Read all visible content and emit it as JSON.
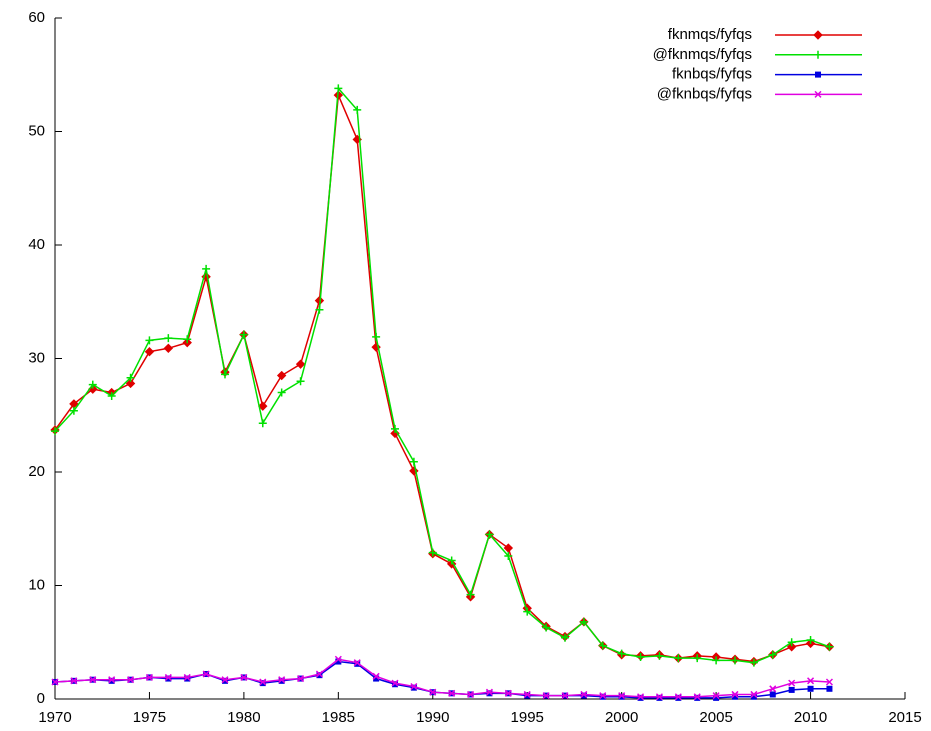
{
  "chart_data": {
    "type": "line",
    "x": [
      1970,
      1971,
      1972,
      1973,
      1974,
      1975,
      1976,
      1977,
      1978,
      1979,
      1980,
      1981,
      1982,
      1983,
      1984,
      1985,
      1986,
      1987,
      1988,
      1989,
      1990,
      1991,
      1992,
      1993,
      1994,
      1995,
      1996,
      1997,
      1998,
      1999,
      2000,
      2001,
      2002,
      2003,
      2004,
      2005,
      2006,
      2007,
      2008,
      2009,
      2010,
      2011
    ],
    "series": [
      {
        "name": "fknmqs/fyfqs",
        "color": "#e00000",
        "marker": "diamond",
        "values": [
          23.7,
          26.0,
          27.3,
          27.0,
          27.8,
          30.6,
          30.9,
          31.4,
          37.2,
          28.8,
          32.1,
          25.8,
          28.5,
          29.5,
          35.1,
          53.2,
          49.3,
          31.0,
          23.4,
          20.1,
          12.8,
          11.9,
          9.0,
          14.5,
          13.3,
          8.0,
          6.4,
          5.5,
          6.8,
          4.7,
          3.9,
          3.8,
          3.9,
          3.6,
          3.8,
          3.7,
          3.5,
          3.3,
          3.9,
          4.6,
          4.9,
          4.6
        ]
      },
      {
        "name": "@fknmqs/fyfqs",
        "color": "#00e000",
        "marker": "plus",
        "values": [
          23.6,
          25.4,
          27.7,
          26.7,
          28.3,
          31.6,
          31.8,
          31.7,
          37.9,
          28.6,
          32.1,
          24.3,
          27.0,
          28.0,
          34.3,
          53.8,
          51.9,
          31.9,
          23.8,
          20.9,
          12.9,
          12.2,
          9.2,
          14.5,
          12.6,
          7.7,
          6.3,
          5.4,
          6.8,
          4.7,
          4.0,
          3.7,
          3.8,
          3.6,
          3.6,
          3.4,
          3.4,
          3.2,
          3.9,
          5.0,
          5.2,
          4.6
        ]
      },
      {
        "name": "fknbqs/fyfqs",
        "color": "#0000e0",
        "marker": "square",
        "values": [
          1.5,
          1.6,
          1.7,
          1.6,
          1.7,
          1.9,
          1.8,
          1.8,
          2.2,
          1.6,
          1.9,
          1.4,
          1.6,
          1.8,
          2.1,
          3.3,
          3.1,
          1.8,
          1.3,
          1.0,
          0.6,
          0.5,
          0.4,
          0.5,
          0.5,
          0.3,
          0.3,
          0.3,
          0.3,
          0.2,
          0.2,
          0.1,
          0.1,
          0.1,
          0.1,
          0.1,
          0.2,
          0.2,
          0.4,
          0.8,
          0.9,
          0.9
        ]
      },
      {
        "name": "@fknbqs/fyfqs",
        "color": "#e000e0",
        "marker": "cross",
        "values": [
          1.5,
          1.6,
          1.7,
          1.7,
          1.7,
          1.9,
          1.9,
          1.9,
          2.2,
          1.7,
          1.9,
          1.5,
          1.7,
          1.8,
          2.2,
          3.5,
          3.2,
          2.0,
          1.4,
          1.1,
          0.6,
          0.5,
          0.4,
          0.6,
          0.5,
          0.4,
          0.3,
          0.3,
          0.4,
          0.3,
          0.3,
          0.2,
          0.2,
          0.2,
          0.2,
          0.3,
          0.4,
          0.4,
          0.9,
          1.4,
          1.6,
          1.5
        ]
      }
    ],
    "xlim": [
      1970,
      2015
    ],
    "xticks": [
      1970,
      1975,
      1980,
      1985,
      1990,
      1995,
      2000,
      2005,
      2010,
      2015
    ],
    "ylim": [
      0,
      60
    ],
    "yticks": [
      0,
      10,
      20,
      30,
      40,
      50,
      60
    ],
    "grid": false,
    "legend": "top-right"
  }
}
